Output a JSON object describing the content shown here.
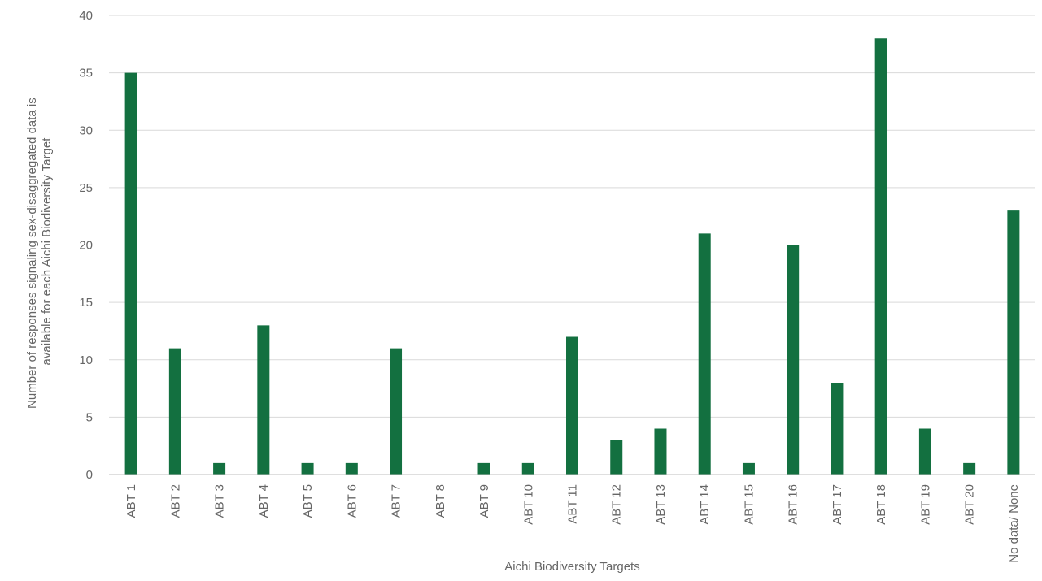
{
  "chart_data": {
    "type": "bar",
    "title": "",
    "xlabel": "Aichi Biodiversity Targets",
    "ylabel_lines": [
      "Number of responses signaling sex-disaggregated data is",
      "available for each Aichi Biodiversity Target"
    ],
    "categories": [
      "ABT 1",
      "ABT 2",
      "ABT 3",
      "ABT 4",
      "ABT 5",
      "ABT 6",
      "ABT 7",
      "ABT 8",
      "ABT 9",
      "ABT 10",
      "ABT 11",
      "ABT 12",
      "ABT 13",
      "ABT 14",
      "ABT 15",
      "ABT 16",
      "ABT 17",
      "ABT 18",
      "ABT 19",
      "ABT 20",
      "No data/ None"
    ],
    "values": [
      35,
      11,
      1,
      13,
      1,
      1,
      11,
      0,
      1,
      1,
      12,
      3,
      4,
      21,
      1,
      20,
      8,
      38,
      4,
      1,
      23
    ],
    "ylim": [
      0,
      40
    ],
    "yticks": [
      0,
      5,
      10,
      15,
      20,
      25,
      30,
      35,
      40
    ],
    "grid": true,
    "legend": "none",
    "bar_color": "#137040"
  }
}
